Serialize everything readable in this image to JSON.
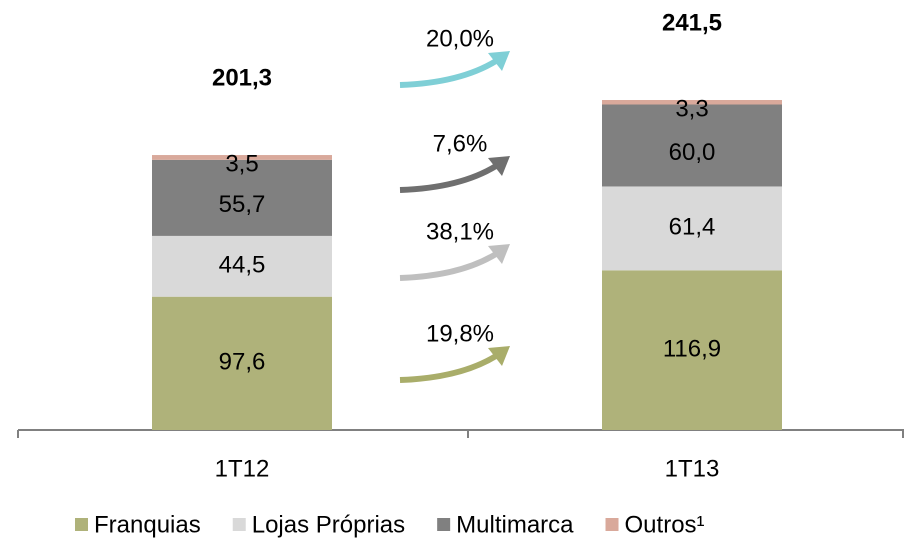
{
  "chart_data": {
    "type": "stacked_bar",
    "categories": [
      "1T12",
      "1T13"
    ],
    "series": [
      {
        "name": "Franquias",
        "color": "#afb27a",
        "values": [
          97.6,
          116.9
        ],
        "value_labels": [
          "97,6",
          "116,9"
        ]
      },
      {
        "name": "Lojas Próprias",
        "color": "#d9d9d9",
        "values": [
          44.5,
          61.4
        ],
        "value_labels": [
          "44,5",
          "61,4"
        ]
      },
      {
        "name": "Multimarca",
        "color": "#808080",
        "values": [
          55.7,
          60.0
        ],
        "value_labels": [
          "55,7",
          "60,0"
        ]
      },
      {
        "name": "Outros¹",
        "color": "#d9a99b",
        "values": [
          3.5,
          3.3
        ],
        "value_labels": [
          "3,5",
          "3,3"
        ]
      }
    ],
    "totals": [
      201.3,
      241.5
    ],
    "total_labels": [
      "201,3",
      "241,5"
    ],
    "growth_values": [
      19.8,
      38.1,
      7.6,
      20.0
    ],
    "growth_labels": [
      "19,8%",
      "38,1%",
      "7,6%",
      "20,0%"
    ],
    "growth_colors": [
      "#a9ad6a",
      "#bfbfbf",
      "#6f6f6f",
      "#7fcfd6"
    ]
  }
}
